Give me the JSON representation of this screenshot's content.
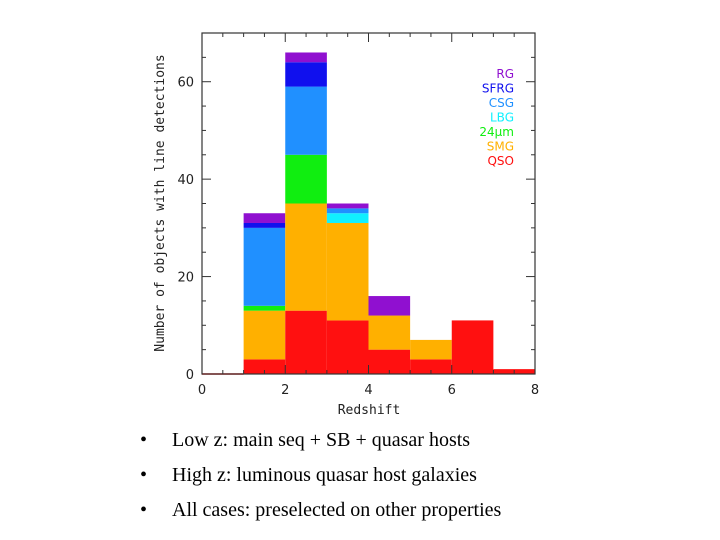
{
  "chart_data": {
    "type": "bar",
    "stacked": true,
    "title": "",
    "xlabel": "Redshift",
    "ylabel": "Number of objects with line detections",
    "xlim": [
      0,
      8
    ],
    "ylim": [
      0,
      70
    ],
    "xticks": [
      0,
      2,
      4,
      6,
      8
    ],
    "yticks": [
      0,
      20,
      40,
      60
    ],
    "bins": [
      [
        0,
        1
      ],
      [
        1,
        2
      ],
      [
        2,
        3
      ],
      [
        3,
        4
      ],
      [
        4,
        5
      ],
      [
        5,
        6
      ],
      [
        6,
        7
      ],
      [
        7,
        8
      ]
    ],
    "series": [
      {
        "name": "QSO",
        "color": "#ff1010",
        "values": [
          0,
          3,
          13,
          11,
          5,
          3,
          11,
          1
        ]
      },
      {
        "name": "SMG",
        "color": "#ffb000",
        "values": [
          0,
          10,
          22,
          20,
          7,
          4,
          0,
          0
        ]
      },
      {
        "name": "24μm",
        "color": "#10ee10",
        "values": [
          0,
          1,
          10,
          0,
          0,
          0,
          0,
          0
        ]
      },
      {
        "name": "LBG",
        "color": "#10f0ff",
        "values": [
          0,
          0,
          0,
          2,
          0,
          0,
          0,
          0
        ]
      },
      {
        "name": "CSG",
        "color": "#2090ff",
        "values": [
          0,
          16,
          14,
          1,
          0,
          0,
          0,
          0
        ]
      },
      {
        "name": "SFRG",
        "color": "#1010ee",
        "values": [
          0,
          1,
          5,
          0,
          0,
          0,
          0,
          0
        ]
      },
      {
        "name": "RG",
        "color": "#9010d0",
        "values": [
          0,
          2,
          2,
          1,
          4,
          0,
          0,
          0
        ]
      }
    ],
    "legend": {
      "placement": "top-right",
      "order": [
        "RG",
        "SFRG",
        "CSG",
        "LBG",
        "24μm",
        "SMG",
        "QSO"
      ]
    }
  },
  "bullets": [
    "Low z: main seq + SB + quasar hosts",
    "High z: luminous quasar host galaxies",
    "All cases: preselected on other properties"
  ],
  "bullet_symbol": "•"
}
